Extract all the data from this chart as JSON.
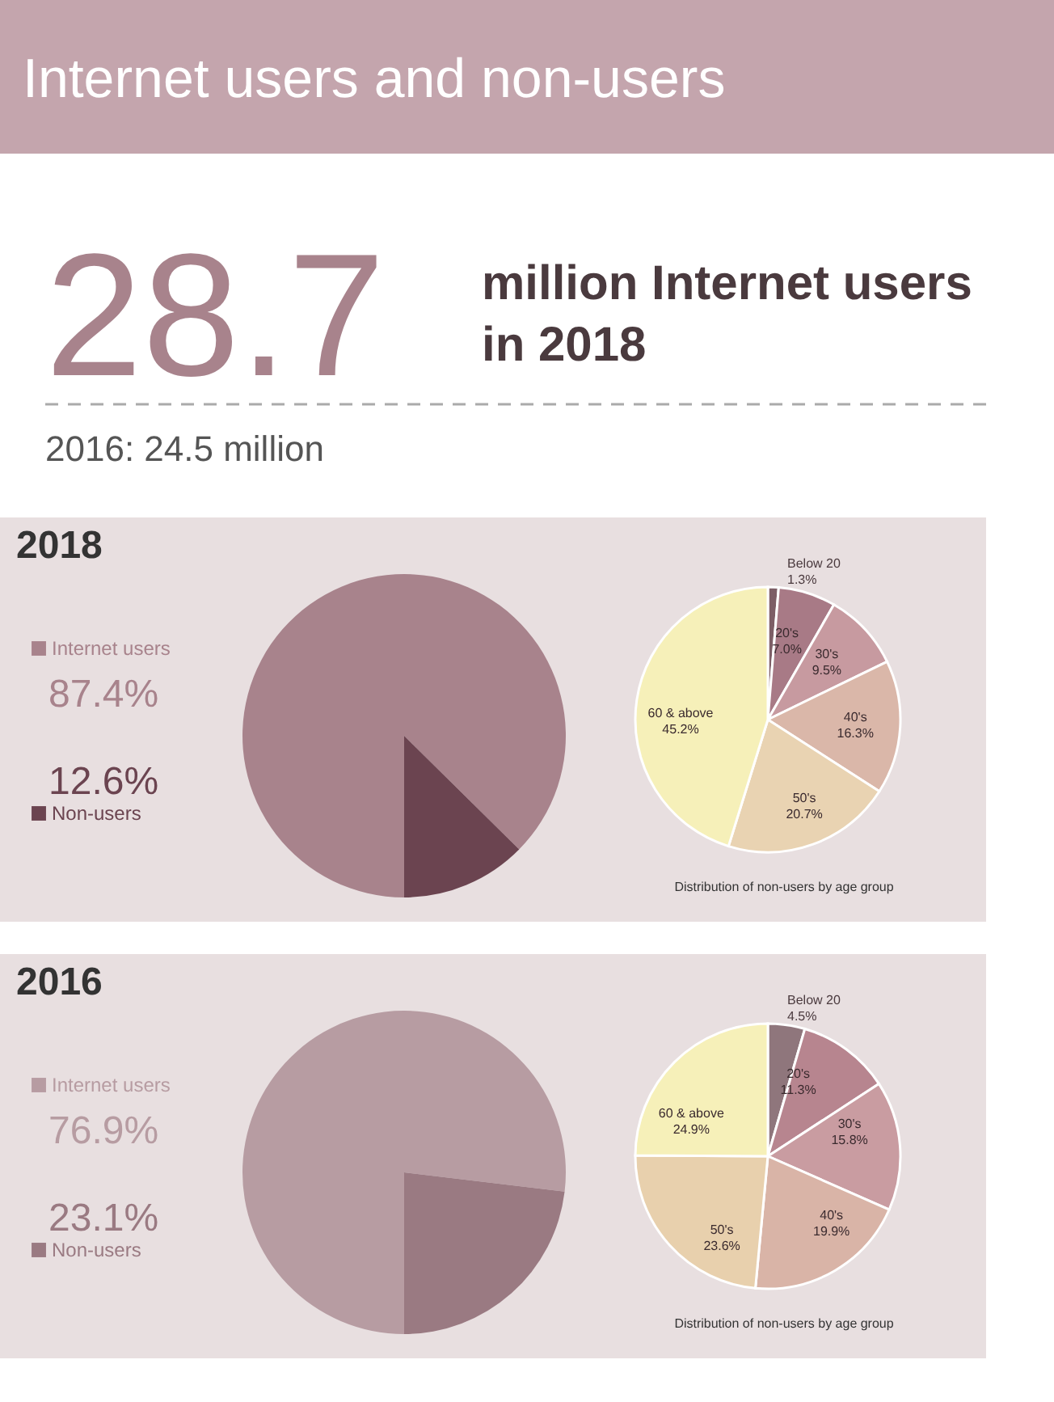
{
  "chart_data": [
    {
      "type": "other",
      "title": "Internet users and non-users",
      "annotations": [
        "28.7",
        "million Internet users in 2018",
        "2016: 24.5 million"
      ]
    },
    {
      "type": "pie",
      "title": "2018",
      "categories": [
        "Internet users",
        "Non-users"
      ],
      "values": [
        87.4,
        12.6
      ],
      "colors": [
        "#a8838c",
        "#6b4450"
      ],
      "value_labels": [
        "87.4%",
        "12.6%"
      ],
      "legend": "left"
    },
    {
      "type": "pie",
      "categories": [
        "Below 20",
        "20's",
        "30's",
        "40's",
        "50's",
        "60 & above"
      ],
      "values": [
        1.3,
        7.0,
        9.5,
        16.3,
        20.7,
        45.2
      ],
      "colors": [
        "#7d5e66",
        "#a87a86",
        "#c79aa0",
        "#dab7a9",
        "#e9d3b2",
        "#f6f0b9"
      ],
      "value_labels": [
        "1.3%",
        "7.0%",
        "9.5%",
        "16.3%",
        "20.7%",
        "45.2%"
      ],
      "annotations": [
        "Distribution of non-users by age group"
      ]
    },
    {
      "type": "pie",
      "title": "2016",
      "categories": [
        "Internet users",
        "Non-users"
      ],
      "values": [
        76.9,
        23.1
      ],
      "colors": [
        "#b79ca2",
        "#9a7a82"
      ],
      "value_labels": [
        "76.9%",
        "23.1%"
      ],
      "legend": "left"
    },
    {
      "type": "pie",
      "categories": [
        "Below 20",
        "20's",
        "30's",
        "40's",
        "50's",
        "60 & above"
      ],
      "values": [
        4.5,
        11.3,
        15.8,
        19.9,
        23.6,
        24.9
      ],
      "colors": [
        "#8f767c",
        "#b7858f",
        "#c99ca1",
        "#d9b4a7",
        "#e8d0ad",
        "#f6f0b9"
      ],
      "value_labels": [
        "4.5%",
        "11.3%",
        "15.8%",
        "19.9%",
        "23.6%",
        "24.9%"
      ],
      "annotations": [
        "Distribution of non-users by age group"
      ]
    }
  ]
}
